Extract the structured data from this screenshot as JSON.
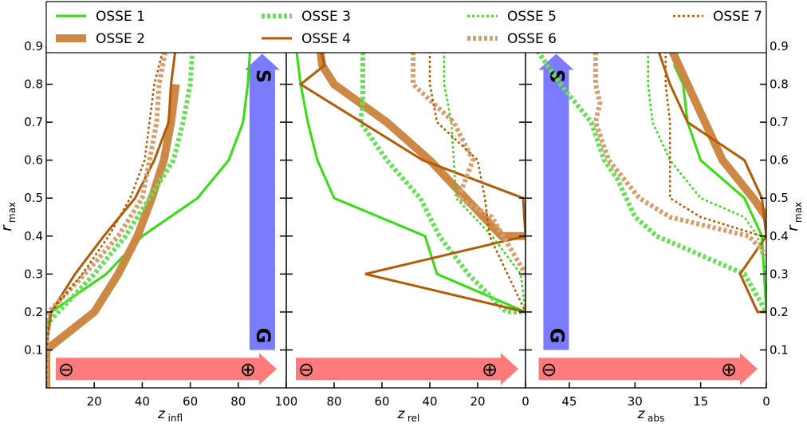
{
  "colors": {
    "green": "#33dd11",
    "light_green": "#66e055",
    "tan": "#cc8844",
    "brown": "#b35a05",
    "light_tan": "#d4a070",
    "arrow_red": "#ff7b7b",
    "arrow_blue": "#7b7bff"
  },
  "legend": {
    "entries": [
      {
        "label": "OSSE 1",
        "color": "#33dd11",
        "style": "solid-thin"
      },
      {
        "label": "OSSE 2",
        "color": "#cc8844",
        "style": "solid-thick"
      },
      {
        "label": "OSSE 3",
        "color": "#66e055",
        "style": "dotted-thick"
      },
      {
        "label": "OSSE 4",
        "color": "#b35a05",
        "style": "solid-medium"
      },
      {
        "label": "OSSE 5",
        "color": "#33dd11",
        "style": "dotted-thin"
      },
      {
        "label": "OSSE 6",
        "color": "#d4a070",
        "style": "dotted-thick"
      },
      {
        "label": "OSSE 7",
        "color": "#b35a05",
        "style": "dotted-thin"
      }
    ]
  },
  "y_axis": {
    "label_main": "r",
    "label_sub": "max",
    "range": [
      0,
      0.9
    ],
    "ticks": [
      "0.1",
      "0.2",
      "0.3",
      "0.4",
      "0.5",
      "0.6",
      "0.7",
      "0.8",
      "0.9"
    ],
    "tick_values": [
      0.1,
      0.2,
      0.3,
      0.4,
      0.5,
      0.6,
      0.7,
      0.8,
      0.9
    ]
  },
  "annotations": {
    "minus_symbol": "⊖",
    "plus_symbol": "⊕",
    "blue_top_letter": "S",
    "blue_bottom_letter": "G"
  },
  "chart_data": [
    {
      "type": "line",
      "xlabel_main": "z",
      "xlabel_sub": "infl",
      "xlim": [
        0,
        100
      ],
      "x_reversed": false,
      "x_ticks": [
        "20",
        "40",
        "60",
        "80"
      ],
      "x_tick_values": [
        20,
        40,
        60,
        80
      ],
      "blue_arrow": {
        "direction": "up",
        "x": 90,
        "y_start": 0.1,
        "y_end": 0.88
      },
      "red_arrow": {
        "direction": "right",
        "x_start": 4,
        "x_end": 96,
        "y": 0.05
      },
      "series": [
        {
          "name": "OSSE 1",
          "x": [
            0,
            0,
            0,
            1,
            2,
            25,
            40,
            63,
            76,
            82,
            84,
            85
          ],
          "y": [
            0,
            0.1,
            0.15,
            0.18,
            0.2,
            0.3,
            0.4,
            0.5,
            0.6,
            0.7,
            0.8,
            0.9
          ]
        },
        {
          "name": "OSSE 2",
          "x": [
            0,
            0,
            20,
            30,
            38,
            44,
            49,
            52,
            54
          ],
          "y": [
            0,
            0.1,
            0.2,
            0.3,
            0.4,
            0.5,
            0.6,
            0.7,
            0.8
          ]
        },
        {
          "name": "OSSE 3",
          "x": [
            0,
            0,
            0,
            2,
            20,
            33,
            43,
            53,
            57,
            60,
            61
          ],
          "y": [
            0,
            0.1,
            0.15,
            0.18,
            0.3,
            0.4,
            0.5,
            0.6,
            0.7,
            0.8,
            0.9
          ]
        },
        {
          "name": "OSSE 4",
          "x": [
            0,
            0,
            2,
            12,
            24,
            37,
            45,
            51,
            52,
            54
          ],
          "y": [
            0,
            0.1,
            0.2,
            0.3,
            0.4,
            0.5,
            0.6,
            0.7,
            0.8,
            0.9
          ]
        },
        {
          "name": "OSSE 6",
          "x": [
            0,
            0,
            1,
            16,
            30,
            40,
            46,
            47,
            50
          ],
          "y": [
            0,
            0.1,
            0.2,
            0.3,
            0.4,
            0.5,
            0.7,
            0.8,
            0.9
          ]
        },
        {
          "name": "OSSE 7",
          "x": [
            0,
            0,
            2,
            15,
            26,
            35,
            41,
            45,
            49
          ],
          "y": [
            0,
            0.1,
            0.2,
            0.3,
            0.4,
            0.5,
            0.6,
            0.8,
            0.9
          ]
        }
      ]
    },
    {
      "type": "line",
      "xlabel_main": "z",
      "xlabel_sub": "rel",
      "xlim": [
        100,
        0
      ],
      "x_reversed": true,
      "x_ticks": [
        "100",
        "80",
        "60",
        "40",
        "20",
        "0"
      ],
      "x_tick_values": [
        100,
        80,
        60,
        40,
        20,
        0
      ],
      "red_arrow": {
        "direction": "right",
        "x_start": 96,
        "x_end": 3,
        "y": 0.05
      },
      "series": [
        {
          "name": "OSSE 1",
          "x": [
            96,
            94,
            91,
            87,
            80,
            42,
            37,
            0
          ],
          "y": [
            0.9,
            0.8,
            0.7,
            0.6,
            0.5,
            0.4,
            0.3,
            0.2
          ]
        },
        {
          "name": "OSSE 2",
          "x": [
            86,
            85,
            80,
            58,
            40,
            25,
            10,
            0
          ],
          "y": [
            0.9,
            0.85,
            0.8,
            0.7,
            0.6,
            0.5,
            0.4,
            0.4
          ]
        },
        {
          "name": "OSSE 3",
          "x": [
            68,
            68,
            68,
            69,
            58,
            44,
            36,
            24,
            8,
            0
          ],
          "y": [
            0.9,
            0.8,
            0.75,
            0.7,
            0.6,
            0.5,
            0.4,
            0.3,
            0.2,
            0.2
          ]
        },
        {
          "name": "OSSE 4",
          "x": [
            86,
            84,
            94,
            43,
            1,
            0,
            67,
            0
          ],
          "y": [
            0.9,
            0.85,
            0.8,
            0.6,
            0.5,
            0.4,
            0.3,
            0.2
          ]
        },
        {
          "name": "OSSE 5",
          "x": [
            34,
            34,
            31,
            30,
            29,
            14,
            2,
            0
          ],
          "y": [
            0.9,
            0.8,
            0.7,
            0.6,
            0.5,
            0.4,
            0.3,
            0.2
          ]
        },
        {
          "name": "OSSE 6",
          "x": [
            47,
            47,
            30,
            22,
            28,
            14,
            0
          ],
          "y": [
            0.9,
            0.8,
            0.7,
            0.6,
            0.5,
            0.45,
            0.3
          ]
        },
        {
          "name": "OSSE 7",
          "x": [
            40,
            40,
            37,
            20,
            17,
            15,
            0
          ],
          "y": [
            0.9,
            0.8,
            0.7,
            0.6,
            0.5,
            0.4,
            0.2
          ]
        }
      ]
    },
    {
      "type": "line",
      "xlabel_main": "z",
      "xlabel_sub": "abs",
      "xlim": [
        55,
        0
      ],
      "x_reversed": true,
      "x_ticks": [
        "45",
        "30",
        "15",
        "0"
      ],
      "x_tick_values": [
        45,
        30,
        15,
        0
      ],
      "blue_arrow": {
        "direction": "up",
        "x": 48,
        "y_start": 0.1,
        "y_end": 0.88
      },
      "red_arrow": {
        "direction": "right",
        "x_start": 52,
        "x_end": 2,
        "y": 0.05
      },
      "series": [
        {
          "name": "OSSE 1",
          "x": [
            20,
            21,
            19,
            18,
            15,
            5,
            1,
            0
          ],
          "y": [
            0.9,
            0.85,
            0.8,
            0.7,
            0.6,
            0.5,
            0.4,
            0.2
          ]
        },
        {
          "name": "OSSE 2",
          "x": [
            22,
            20,
            18,
            14,
            10,
            3,
            0
          ],
          "y": [
            0.9,
            0.85,
            0.8,
            0.7,
            0.6,
            0.5,
            0.45
          ]
        },
        {
          "name": "OSSE 3",
          "x": [
            53,
            47,
            40,
            37,
            34,
            30,
            25,
            15,
            5,
            0
          ],
          "y": [
            0.9,
            0.8,
            0.7,
            0.6,
            0.55,
            0.45,
            0.4,
            0.35,
            0.3,
            0.2
          ]
        },
        {
          "name": "OSSE 4",
          "x": [
            25,
            22,
            18,
            5,
            1,
            0,
            6,
            2,
            0
          ],
          "y": [
            0.9,
            0.8,
            0.7,
            0.6,
            0.5,
            0.4,
            0.3,
            0.2,
            0.2
          ]
        },
        {
          "name": "OSSE 5",
          "x": [
            27,
            27,
            26,
            22,
            15,
            5,
            2,
            0
          ],
          "y": [
            0.9,
            0.8,
            0.7,
            0.6,
            0.5,
            0.45,
            0.4,
            0.3
          ]
        },
        {
          "name": "OSSE 6",
          "x": [
            39,
            39,
            38,
            39,
            36,
            29,
            22,
            4,
            0
          ],
          "y": [
            0.9,
            0.8,
            0.75,
            0.7,
            0.6,
            0.5,
            0.45,
            0.4,
            0.35
          ]
        },
        {
          "name": "OSSE 7",
          "x": [
            23,
            23,
            22,
            22,
            15,
            1,
            0
          ],
          "y": [
            0.9,
            0.8,
            0.7,
            0.5,
            0.45,
            0.4,
            0.4
          ]
        }
      ]
    }
  ]
}
